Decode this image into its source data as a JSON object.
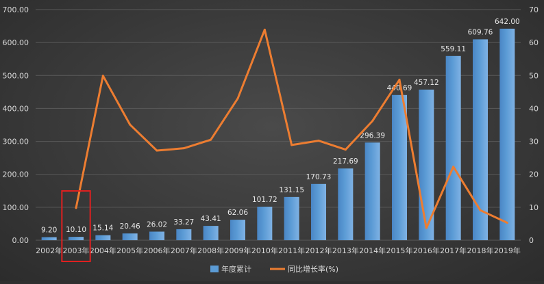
{
  "chart_data": {
    "type": "bar",
    "categories": [
      "2002年",
      "2003年",
      "2004年",
      "2005年",
      "2006年",
      "2007年",
      "2008年",
      "2009年",
      "2010年",
      "2011年",
      "2012年",
      "2013年",
      "2014年",
      "2015年",
      "2016年",
      "2017年",
      "2018年",
      "2019年"
    ],
    "series": [
      {
        "name": "年度累计",
        "type": "bar",
        "axis": "left",
        "color": "#5b9bd5",
        "values": [
          9.2,
          10.1,
          15.14,
          20.46,
          26.02,
          33.27,
          43.41,
          62.06,
          101.72,
          131.15,
          170.73,
          217.69,
          296.39,
          440.69,
          457.12,
          559.11,
          609.76,
          642.0
        ],
        "labels": [
          "9.20",
          "10.10",
          "15.14",
          "20.46",
          "26.02",
          "33.27",
          "43.41",
          "62.06",
          "101.72",
          "131.15",
          "170.73",
          "217.69",
          "296.39",
          "440.69",
          "457.12",
          "559.11",
          "609.76",
          "642.00"
        ]
      },
      {
        "name": "同比增长率(%)",
        "type": "line",
        "axis": "right",
        "color": "#ed7d31",
        "values": [
          null,
          9.8,
          49.9,
          35.1,
          27.2,
          27.9,
          30.5,
          43.0,
          63.9,
          28.9,
          30.2,
          27.5,
          36.2,
          48.7,
          3.7,
          22.3,
          9.1,
          5.3
        ]
      }
    ],
    "left_axis": {
      "min": 0,
      "max": 700,
      "step": 100,
      "tick_labels": [
        "0.00",
        "100.00",
        "200.00",
        "300.00",
        "400.00",
        "500.00",
        "600.00",
        "700.00"
      ]
    },
    "right_axis": {
      "min": 0,
      "max": 70,
      "step": 10,
      "tick_labels": [
        "0",
        "10",
        "20",
        "30",
        "40",
        "50",
        "60",
        "70"
      ]
    },
    "grid": true,
    "legend": "bottom",
    "highlight": {
      "category": "2003年",
      "color": "#e02020"
    }
  }
}
